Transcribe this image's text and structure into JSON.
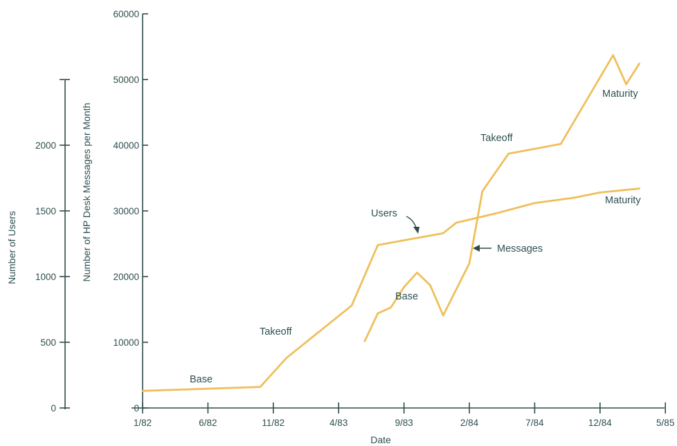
{
  "chart_data": {
    "type": "line",
    "xlabel": "Date",
    "ylabel_left": "Number of Users",
    "ylabel_right": "Number of HP Desk Messages per Month",
    "x_ticks": [
      "1/82",
      "6/82",
      "11/82",
      "4/83",
      "9/83",
      "2/84",
      "7/84",
      "12/84",
      "5/85"
    ],
    "users_axis": {
      "ticks": [
        "0",
        "500",
        "1000",
        "1500",
        "2000"
      ],
      "ylim": [
        0,
        2500
      ]
    },
    "messages_axis": {
      "ticks": [
        "0",
        "10000",
        "20000",
        "30000",
        "40000",
        "50000",
        "60000"
      ],
      "ylim": [
        0,
        60000
      ]
    },
    "colors": {
      "series": "#efbf5a",
      "axis": "#2e4a4a",
      "text": "#2f4f4f"
    },
    "series": [
      {
        "name": "Users",
        "axis": "users",
        "x": [
          "1/82",
          "10/82",
          "12/82",
          "5/83",
          "7/83",
          "12/83",
          "1/84",
          "4/84",
          "7/84",
          "10/84",
          "12/84",
          "3/85"
        ],
        "values": [
          130,
          160,
          380,
          780,
          1240,
          1330,
          1410,
          1480,
          1560,
          1600,
          1640,
          1670
        ]
      },
      {
        "name": "Messages",
        "axis": "messages",
        "x": [
          "6/83",
          "7/83",
          "8/83",
          "9/83",
          "10/83",
          "11/83",
          "12/83",
          "2/84",
          "3/84",
          "5/84",
          "9/84",
          "1/85",
          "2/85",
          "3/85"
        ],
        "values": [
          10200,
          14400,
          15300,
          18400,
          20600,
          18700,
          14100,
          22000,
          33000,
          38700,
          40200,
          53700,
          49300,
          52400
        ]
      }
    ],
    "annotations": [
      {
        "text": "Base"
      },
      {
        "text": "Takeoff"
      },
      {
        "text": "Users"
      },
      {
        "text": "Base"
      },
      {
        "text": "Messages"
      },
      {
        "text": "Takeoff"
      },
      {
        "text": "Maturity"
      },
      {
        "text": "Maturity"
      }
    ]
  }
}
